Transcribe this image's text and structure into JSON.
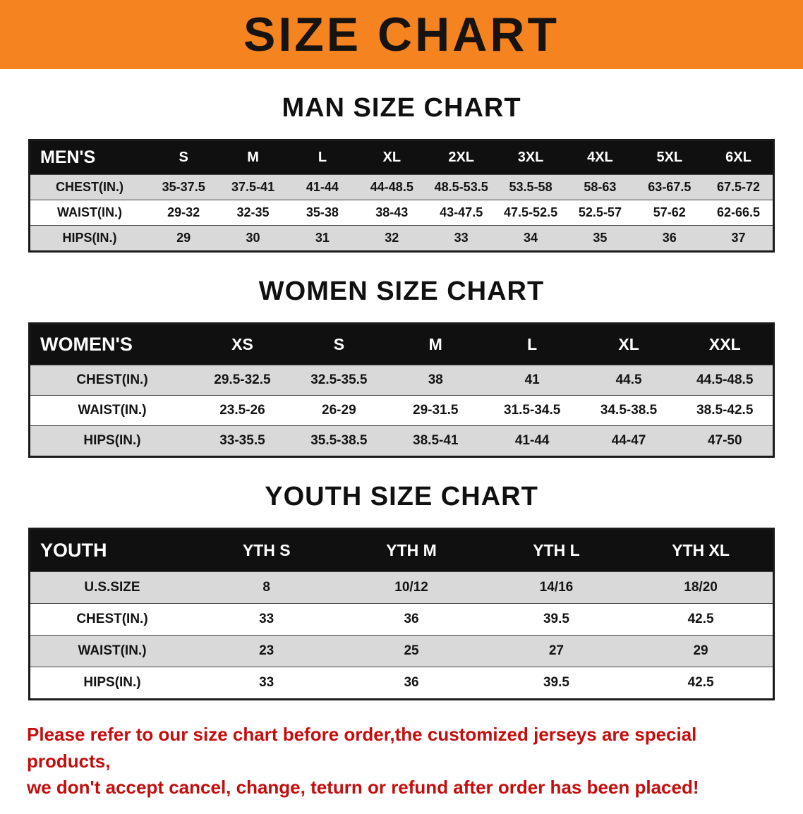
{
  "banner": {
    "title": "SIZE CHART"
  },
  "colors": {
    "banner_bg": "#F5831F",
    "banner_text": "#161311",
    "table_header_bg": "#101010",
    "table_header_text": "#FFFFFF",
    "row_stripe": "#D9D9D9",
    "note_text": "#C50D0D"
  },
  "sections": [
    {
      "key": "men",
      "heading": "MAN SIZE CHART",
      "table": {
        "header": [
          "MEN'S",
          "S",
          "M",
          "L",
          "XL",
          "2XL",
          "3XL",
          "4XL",
          "5XL",
          "6XL"
        ],
        "rows": [
          [
            "CHEST(IN.)",
            "35-37.5",
            "37.5-41",
            "41-44",
            "44-48.5",
            "48.5-53.5",
            "53.5-58",
            "58-63",
            "63-67.5",
            "67.5-72"
          ],
          [
            "WAIST(IN.)",
            "29-32",
            "32-35",
            "35-38",
            "38-43",
            "43-47.5",
            "47.5-52.5",
            "52.5-57",
            "57-62",
            "62-66.5"
          ],
          [
            "HIPS(IN.)",
            "29",
            "30",
            "31",
            "32",
            "33",
            "34",
            "35",
            "36",
            "37"
          ]
        ]
      }
    },
    {
      "key": "women",
      "heading": "WOMEN SIZE CHART",
      "table": {
        "header": [
          "WOMEN'S",
          "XS",
          "S",
          "M",
          "L",
          "XL",
          "XXL"
        ],
        "rows": [
          [
            "CHEST(IN.)",
            "29.5-32.5",
            "32.5-35.5",
            "38",
            "41",
            "44.5",
            "44.5-48.5"
          ],
          [
            "WAIST(IN.)",
            "23.5-26",
            "26-29",
            "29-31.5",
            "31.5-34.5",
            "34.5-38.5",
            "38.5-42.5"
          ],
          [
            "HIPS(IN.)",
            "33-35.5",
            "35.5-38.5",
            "38.5-41",
            "41-44",
            "44-47",
            "47-50"
          ]
        ]
      }
    },
    {
      "key": "youth",
      "heading": "YOUTH SIZE CHART",
      "table": {
        "header": [
          "YOUTH",
          "YTH S",
          "YTH M",
          "YTH L",
          "YTH XL"
        ],
        "rows": [
          [
            "U.S.SIZE",
            "8",
            "10/12",
            "14/16",
            "18/20"
          ],
          [
            "CHEST(IN.)",
            "33",
            "36",
            "39.5",
            "42.5"
          ],
          [
            "WAIST(IN.)",
            "23",
            "25",
            "27",
            "29"
          ],
          [
            "HIPS(IN.)",
            "33",
            "36",
            "39.5",
            "42.5"
          ]
        ]
      }
    }
  ],
  "footer_note": {
    "line1": "Please refer to our size chart before order,the customized jerseys are special products,",
    "line2": "we don't accept cancel, change, teturn or refund after order has been placed!"
  }
}
